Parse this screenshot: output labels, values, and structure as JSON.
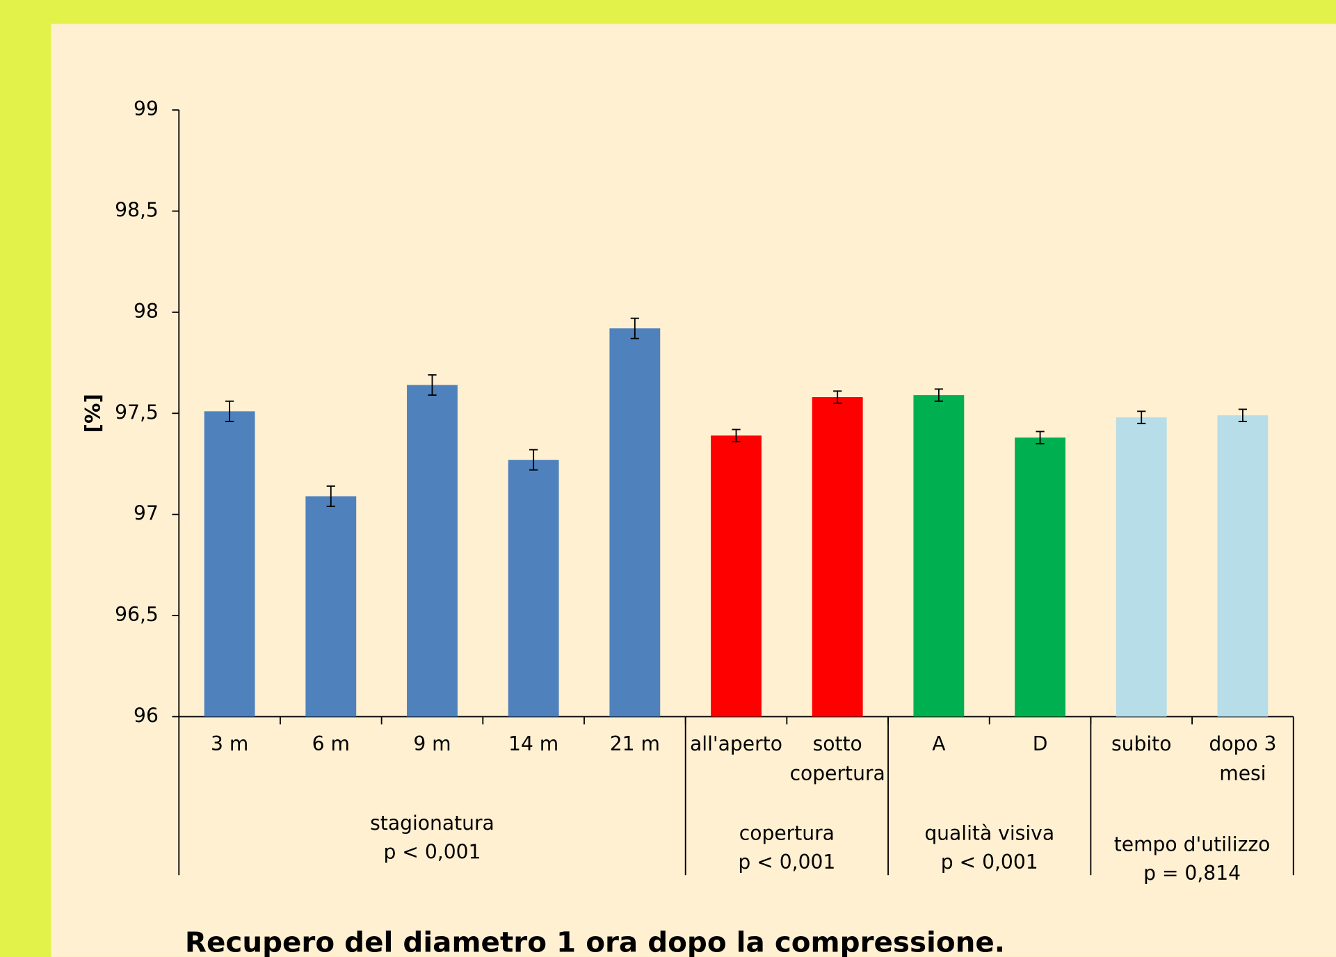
{
  "chart_data": {
    "type": "bar",
    "title": "Recupero del diametro 1 ora dopo la compressione.",
    "y_label": "[%]",
    "ylim": [
      96,
      99
    ],
    "yticks": [
      96,
      {
        "value": 96.5,
        "label": "96,5"
      },
      97,
      {
        "value": 97.5,
        "label": "97,5"
      },
      98,
      {
        "value": 98.5,
        "label": "98,5"
      },
      99
    ],
    "groups": [
      {
        "name": "stagionatura",
        "note": "p < 0,001",
        "color": "#4f81bd",
        "categories": [
          "3 m",
          "6 m",
          "9 m",
          "14 m",
          "21 m"
        ],
        "values": [
          97.51,
          97.09,
          97.64,
          97.27,
          97.92
        ],
        "errors": [
          0.05,
          0.05,
          0.05,
          0.05,
          0.05
        ]
      },
      {
        "name": "copertura",
        "note": "p < 0,001",
        "color": "#ff0000",
        "categories": [
          "all'aperto",
          "sotto\ncopertura"
        ],
        "values": [
          97.39,
          97.58
        ],
        "errors": [
          0.03,
          0.03
        ]
      },
      {
        "name": "qualità visiva",
        "note": "p < 0,001",
        "color": "#00b050",
        "categories": [
          "A",
          "D"
        ],
        "values": [
          97.59,
          97.38
        ],
        "errors": [
          0.03,
          0.03
        ]
      },
      {
        "name": "tempo d'utilizzo",
        "note": "p = 0,814",
        "color": "#b7dde8",
        "categories": [
          "subito",
          "dopo 3\nmesi"
        ],
        "values": [
          97.48,
          97.49
        ],
        "errors": [
          0.03,
          0.03
        ]
      }
    ]
  }
}
